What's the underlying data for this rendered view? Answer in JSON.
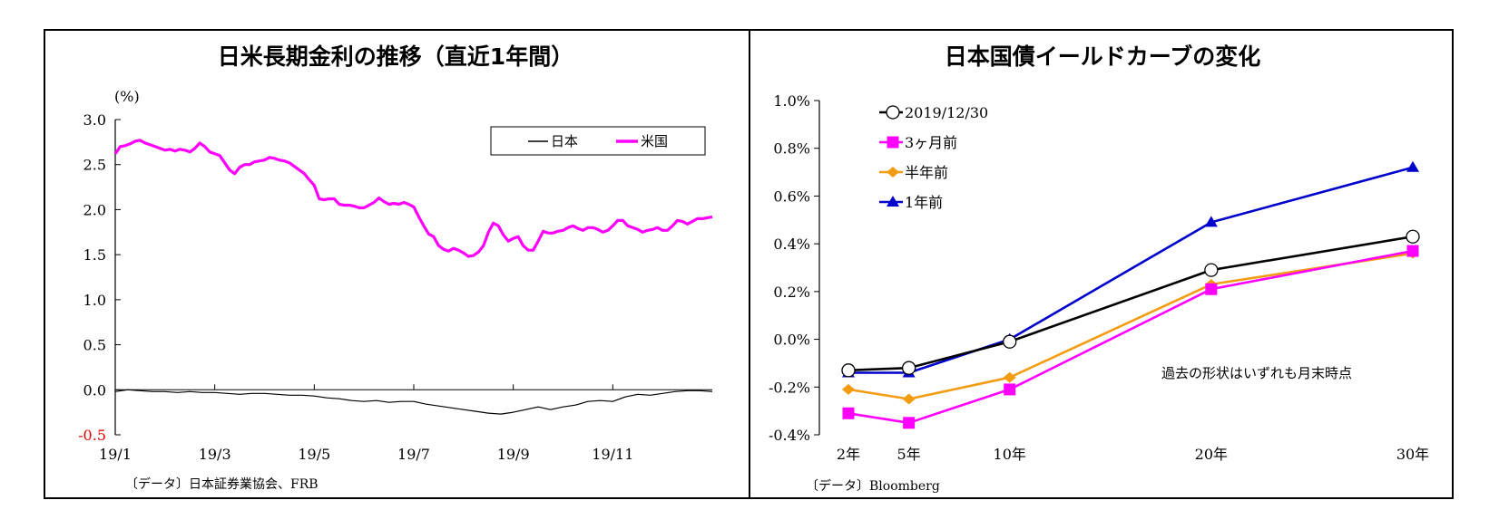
{
  "left_chart": {
    "title": "日米長期金利の推移（直近1年間）",
    "unit": "(%)",
    "source": "〔データ〕日本証券業協会、FRB",
    "legend_labels": [
      "日本",
      "米国"
    ],
    "colors": {
      "japan": "#000000",
      "us": "#ff00ff",
      "negative_tick": "#e00000"
    }
  },
  "right_chart": {
    "title": "日本国債イールドカーブの変化",
    "source": "〔データ〕Bloomberg",
    "note": "過去の形状はいずれも月末時点",
    "colors": {
      "latest": "#000000",
      "three_months": "#ff00ff",
      "half_year": "#f39c12",
      "one_year": "#0000cc"
    }
  },
  "chart_data": [
    {
      "type": "line",
      "title": "日米長期金利の推移（直近1年間）",
      "ylabel": "(%)",
      "ylim": [
        -0.5,
        3.0
      ],
      "yticks": [
        "3.0",
        "2.5",
        "2.0",
        "1.5",
        "1.0",
        "0.5",
        "0.0",
        "-0.5"
      ],
      "yticks_values": [
        3.0,
        2.5,
        2.0,
        1.5,
        1.0,
        0.5,
        0.0,
        -0.5
      ],
      "xticks": [
        "19/1",
        "19/3",
        "19/5",
        "19/7",
        "19/9",
        "19/11"
      ],
      "legend": "top-right",
      "series": [
        {
          "name": "米国",
          "color": "#ff00ff",
          "x": [
            0,
            0.1,
            0.2,
            0.3,
            0.4,
            0.5,
            0.6,
            0.7,
            0.8,
            0.9,
            1.0,
            1.1,
            1.2,
            1.3,
            1.4,
            1.5,
            1.6,
            1.7,
            1.8,
            1.9,
            2.0,
            2.1,
            2.2,
            2.3,
            2.4,
            2.5,
            2.6,
            2.7,
            2.8,
            2.9,
            3.0,
            3.1,
            3.2,
            3.3,
            3.4,
            3.5,
            3.6,
            3.7,
            3.8,
            3.9,
            4.0,
            4.1,
            4.2,
            4.3,
            4.4,
            4.5,
            4.6,
            4.7,
            4.8,
            4.9,
            5.0,
            5.1,
            5.2,
            5.3,
            5.4,
            5.5,
            5.6,
            5.7,
            5.8,
            5.9,
            6.0,
            6.1,
            6.2,
            6.3,
            6.4,
            6.5,
            6.6,
            6.7,
            6.8,
            6.9,
            7.0,
            7.1,
            7.2,
            7.3,
            7.4,
            7.5,
            7.6,
            7.7,
            7.8,
            7.9,
            8.0,
            8.1,
            8.2,
            8.3,
            8.4,
            8.5,
            8.6,
            8.7,
            8.8,
            8.9,
            9.0,
            9.1,
            9.2,
            9.3,
            9.4,
            9.5,
            9.6,
            9.7,
            9.8,
            9.9,
            10.0,
            10.1,
            10.2,
            10.3,
            10.4,
            10.5,
            10.6,
            10.7,
            10.8,
            10.9,
            11.0,
            11.1,
            11.2,
            11.3,
            11.4,
            11.5,
            11.6,
            11.7,
            11.8,
            11.9,
            12.0
          ],
          "values": [
            2.62,
            2.7,
            2.71,
            2.73,
            2.76,
            2.77,
            2.74,
            2.72,
            2.7,
            2.68,
            2.66,
            2.67,
            2.65,
            2.67,
            2.66,
            2.64,
            2.68,
            2.74,
            2.7,
            2.64,
            2.62,
            2.6,
            2.52,
            2.44,
            2.4,
            2.47,
            2.5,
            2.5,
            2.53,
            2.54,
            2.55,
            2.58,
            2.57,
            2.55,
            2.54,
            2.52,
            2.48,
            2.44,
            2.4,
            2.33,
            2.27,
            2.12,
            2.11,
            2.12,
            2.12,
            2.06,
            2.05,
            2.05,
            2.04,
            2.02,
            2.02,
            2.05,
            2.08,
            2.13,
            2.09,
            2.06,
            2.07,
            2.06,
            2.08,
            2.06,
            2.03,
            1.92,
            1.82,
            1.73,
            1.7,
            1.6,
            1.56,
            1.54,
            1.57,
            1.55,
            1.52,
            1.48,
            1.49,
            1.53,
            1.6,
            1.75,
            1.85,
            1.82,
            1.72,
            1.65,
            1.68,
            1.7,
            1.6,
            1.55,
            1.55,
            1.65,
            1.76,
            1.74,
            1.74,
            1.76,
            1.77,
            1.8,
            1.82,
            1.79,
            1.77,
            1.8,
            1.8,
            1.78,
            1.75,
            1.77,
            1.82,
            1.88,
            1.88,
            1.82,
            1.8,
            1.78,
            1.75,
            1.77,
            1.78,
            1.8,
            1.77,
            1.77,
            1.82,
            1.88,
            1.87,
            1.84,
            1.87,
            1.9,
            1.9,
            1.91,
            1.92
          ]
        },
        {
          "name": "日本",
          "color": "#000000",
          "x": [
            0,
            0.25,
            0.5,
            0.75,
            1.0,
            1.25,
            1.5,
            1.75,
            2.0,
            2.25,
            2.5,
            2.75,
            3.0,
            3.25,
            3.5,
            3.75,
            4.0,
            4.25,
            4.5,
            4.75,
            5.0,
            5.25,
            5.5,
            5.75,
            6.0,
            6.25,
            6.5,
            6.75,
            7.0,
            7.25,
            7.5,
            7.75,
            8.0,
            8.25,
            8.5,
            8.75,
            9.0,
            9.25,
            9.5,
            9.75,
            10.0,
            10.25,
            10.5,
            10.75,
            11.0,
            11.25,
            11.5,
            11.75,
            12.0
          ],
          "values": [
            -0.02,
            0.0,
            -0.01,
            -0.02,
            -0.02,
            -0.03,
            -0.02,
            -0.03,
            -0.03,
            -0.04,
            -0.05,
            -0.04,
            -0.04,
            -0.05,
            -0.06,
            -0.06,
            -0.07,
            -0.09,
            -0.1,
            -0.12,
            -0.13,
            -0.12,
            -0.14,
            -0.13,
            -0.13,
            -0.16,
            -0.18,
            -0.2,
            -0.22,
            -0.24,
            -0.26,
            -0.27,
            -0.25,
            -0.22,
            -0.19,
            -0.22,
            -0.19,
            -0.17,
            -0.13,
            -0.12,
            -0.13,
            -0.08,
            -0.05,
            -0.06,
            -0.04,
            -0.02,
            -0.01,
            -0.01,
            -0.02
          ]
        }
      ]
    },
    {
      "type": "line",
      "title": "日本国債イールドカーブの変化",
      "categories": [
        "2年",
        "5年",
        "10年",
        "20年",
        "30年"
      ],
      "x": [
        2,
        5,
        10,
        20,
        30
      ],
      "ylim": [
        -0.4,
        1.0
      ],
      "yticks": [
        "1.0%",
        "0.8%",
        "0.6%",
        "0.4%",
        "0.2%",
        "0.0%",
        "-0.2%",
        "-0.4%"
      ],
      "yticks_values": [
        1.0,
        0.8,
        0.6,
        0.4,
        0.2,
        0.0,
        -0.2,
        -0.4
      ],
      "legend": "top-left",
      "annotation": "過去の形状はいずれも月末時点",
      "series": [
        {
          "name": "2019/12/30",
          "color": "#000000",
          "marker": "circle",
          "values": [
            -0.13,
            -0.12,
            -0.01,
            0.29,
            0.43
          ]
        },
        {
          "name": "3ヶ月前",
          "color": "#ff00ff",
          "marker": "square",
          "values": [
            -0.31,
            -0.35,
            -0.21,
            0.21,
            0.37
          ]
        },
        {
          "name": "半年前",
          "color": "#f39c12",
          "marker": "diamond",
          "values": [
            -0.21,
            -0.25,
            -0.16,
            0.23,
            0.36
          ]
        },
        {
          "name": "1年前",
          "color": "#0000cc",
          "marker": "triangle",
          "values": [
            -0.14,
            -0.14,
            0.0,
            0.49,
            0.72
          ]
        }
      ]
    }
  ]
}
